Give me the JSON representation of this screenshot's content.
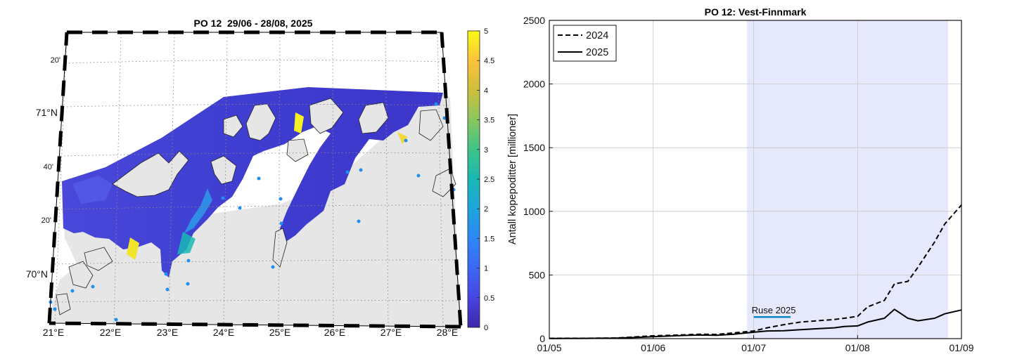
{
  "map_panel": {
    "title": "PO 12  29/06 - 28/08, 2025",
    "lon_ticks": [
      "21°E",
      "22°E",
      "23°E",
      "24°E",
      "25°E",
      "26°E",
      "27°E",
      "28°E"
    ],
    "lat_major": [
      "71°N",
      "70°N"
    ],
    "lat_minor": [
      "20'",
      "40'",
      "20'"
    ],
    "colorbar": {
      "ticks": [
        "5",
        "4.5",
        "4",
        "3.5",
        "3",
        "2.5",
        "2",
        "1.5",
        "1",
        "0.5",
        "0"
      ],
      "min": 0,
      "max": 5,
      "colors": [
        "#3e26a8",
        "#4745e3",
        "#3d67f4",
        "#2e87f6",
        "#1ca5db",
        "#19b8b4",
        "#3ec488",
        "#88c75f",
        "#cebf3b",
        "#fcc23b",
        "#f9fb15"
      ]
    },
    "colors": {
      "land": "#e6e6e6",
      "sea_low": "#4a3bd6",
      "coastline": "#222222",
      "station": "#1f8ff2"
    }
  },
  "chart_data": {
    "type": "line",
    "title": "PO 12: Vest-Finnmark",
    "xlabel": "",
    "ylabel": "Antall kopepoditter [millioner]",
    "x_ticks": [
      "01/05",
      "01/06",
      "01/07",
      "01/08",
      "01/09"
    ],
    "x": [
      0,
      10,
      20,
      31,
      40,
      45,
      50,
      55,
      61,
      65,
      70,
      75,
      80,
      85,
      88,
      92,
      95,
      100,
      103,
      107,
      110,
      115,
      118,
      123
    ],
    "ylim": [
      0,
      2500
    ],
    "y_ticks": [
      "0",
      "500",
      "1000",
      "1500",
      "2000",
      "2500"
    ],
    "grid": true,
    "legend_position": "top-left",
    "shaded_range": [
      59,
      119
    ],
    "shade_color": "#e6e8fb",
    "series": [
      {
        "name": "2024",
        "dash": "dashed",
        "values": [
          2,
          3,
          5,
          22,
          30,
          35,
          33,
          45,
          60,
          85,
          110,
          130,
          140,
          150,
          160,
          175,
          250,
          300,
          430,
          450,
          560,
          760,
          900,
          1050
        ]
      },
      {
        "name": "2025",
        "dash": "solid",
        "values": [
          1,
          2,
          4,
          15,
          25,
          28,
          26,
          35,
          50,
          60,
          62,
          70,
          78,
          85,
          95,
          100,
          130,
          160,
          230,
          160,
          140,
          160,
          195,
          225
        ]
      }
    ],
    "annotations": [
      {
        "text": "Ruse 2025",
        "x_range": [
          61,
          72
        ],
        "y": 170,
        "color": "#0a86c8"
      }
    ]
  }
}
